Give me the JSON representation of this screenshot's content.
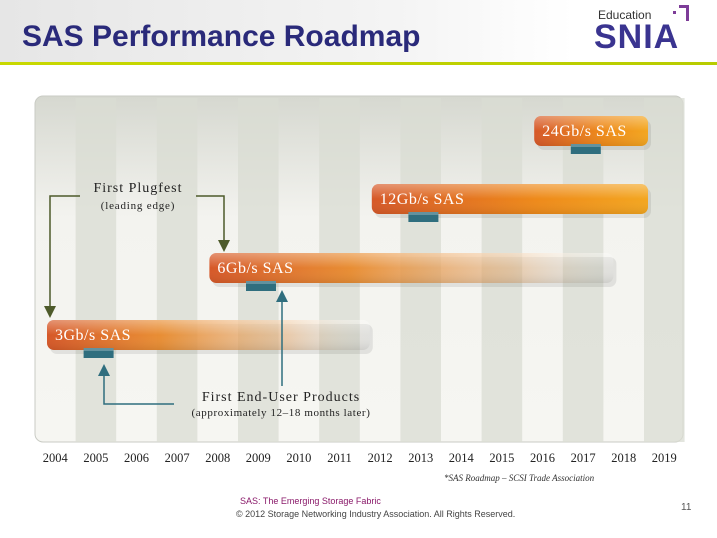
{
  "header": {
    "title": "SAS Performance Roadmap",
    "logo_small": "Education",
    "logo_main": "SNIA"
  },
  "chart_data": {
    "type": "roadmap",
    "x_axis_labels": [
      "2004",
      "2005",
      "2006",
      "2007",
      "2008",
      "2009",
      "2010",
      "2011",
      "2012",
      "2013",
      "2014",
      "2015",
      "2016",
      "2017",
      "2018",
      "2019"
    ],
    "generations": [
      {
        "label": "3Gb/s SAS",
        "start": 2004,
        "end": 2012,
        "marker": 2005
      },
      {
        "label": "6Gb/s SAS",
        "start": 2008,
        "end": 2018,
        "marker": 2009
      },
      {
        "label": "12Gb/s SAS",
        "start": 2012,
        "end": 2019,
        "marker": 2013
      },
      {
        "label": "24Gb/s SAS",
        "start": 2016,
        "end": 2019,
        "marker": 2017
      }
    ],
    "annotations": {
      "plugfest_title": "First Plugfest",
      "plugfest_sub": "(leading edge)",
      "products_title": "First End-User Products",
      "products_sub": "(approximately 12–18 months later)"
    },
    "source_note": "*SAS Roadmap – SCSI Trade Association"
  },
  "colors": {
    "bar_start": "#d85a2a",
    "bar_end": "#f2a010",
    "marker": "#2f6e7e",
    "arrow": "#4d5a2a",
    "title": "#2a2a7a",
    "stripe": "#d9dcd3"
  },
  "footer": {
    "line1": "SAS: The Emerging Storage Fabric",
    "line2": "© 2012 Storage Networking Industry Association. All Rights Reserved.",
    "page": "11"
  }
}
